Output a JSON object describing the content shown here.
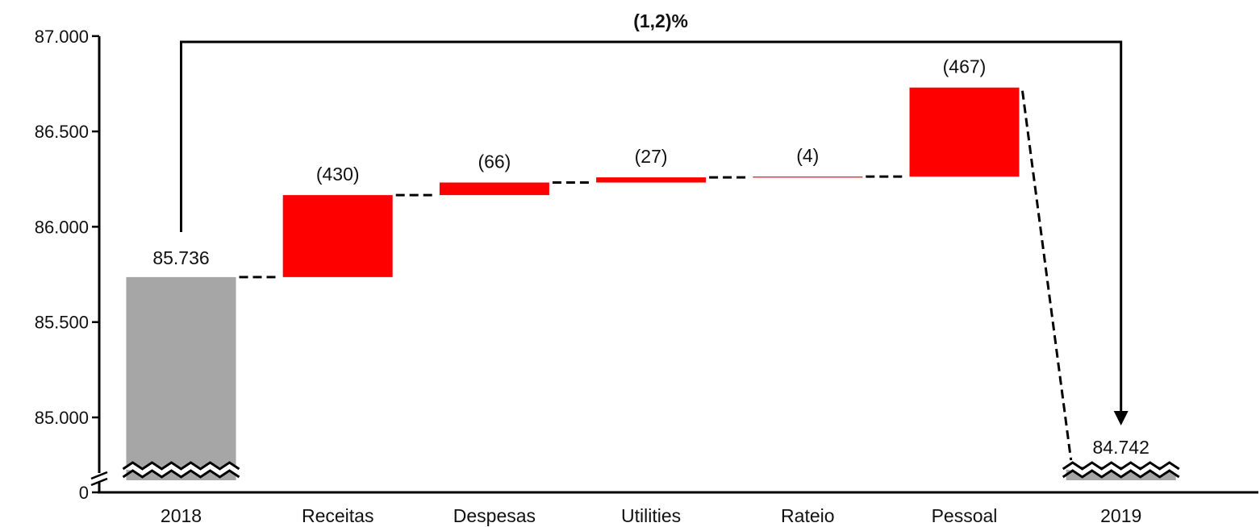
{
  "chart_data": {
    "type": "waterfall",
    "title": "",
    "xlabel": "",
    "ylabel": "",
    "ylim": [
      84700,
      87000
    ],
    "y_axis_break": true,
    "yticks": [
      {
        "label": "0",
        "value": 0
      },
      {
        "label": "85.000",
        "value": 85000
      },
      {
        "label": "85.500",
        "value": 85500
      },
      {
        "label": "86.000",
        "value": 86000
      },
      {
        "label": "86.500",
        "value": 86500
      },
      {
        "label": "87.000",
        "value": 87000
      }
    ],
    "categories": [
      "2018",
      "Receitas",
      "Despesas",
      "Utilities",
      "Rateio",
      "Pessoal",
      "2019"
    ],
    "bars": [
      {
        "category": "2018",
        "kind": "total",
        "value": 85736,
        "label": "85.736"
      },
      {
        "category": "Receitas",
        "kind": "change",
        "value": -430,
        "label": "(430)"
      },
      {
        "category": "Despesas",
        "kind": "change",
        "value": -66,
        "label": "(66)"
      },
      {
        "category": "Utilities",
        "kind": "change",
        "value": -27,
        "label": "(27)"
      },
      {
        "category": "Rateio",
        "kind": "change",
        "value": -4,
        "label": "(4)"
      },
      {
        "category": "Pessoal",
        "kind": "change",
        "value": -467,
        "label": "(467)"
      },
      {
        "category": "2019",
        "kind": "total",
        "value": 84742,
        "label": "84.742"
      }
    ],
    "annotation": {
      "label": "(1,2)%",
      "from": "2018",
      "to": "2019"
    },
    "colors": {
      "total": "#a6a6a6",
      "change": "#ff0000",
      "axis": "#000000",
      "connector": "#000000"
    },
    "grid": false,
    "legend": "none"
  }
}
